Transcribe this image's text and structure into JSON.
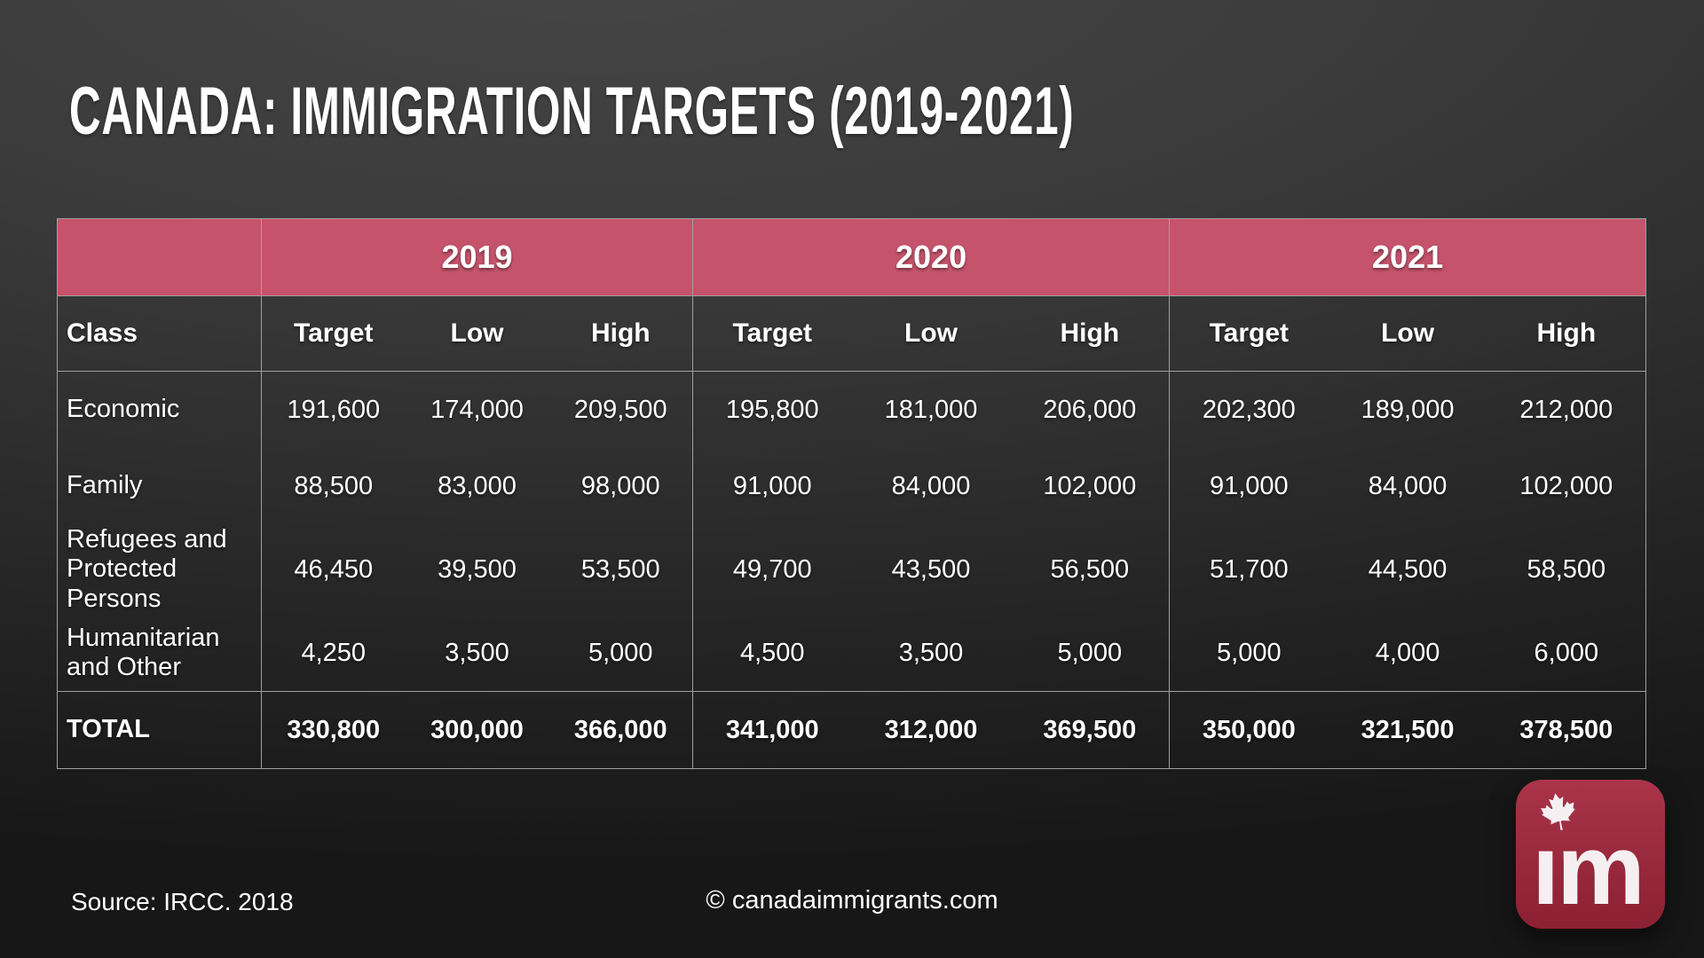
{
  "chart_data": {
    "type": "table",
    "title": "CANADA: IMMIGRATION TARGETS (2019-2021)",
    "row_header_label": "Class",
    "year_groups": [
      {
        "year": "2019",
        "sub_columns": [
          "Target",
          "Low",
          "High"
        ]
      },
      {
        "year": "2020",
        "sub_columns": [
          "Target",
          "Low",
          "High"
        ]
      },
      {
        "year": "2021",
        "sub_columns": [
          "Target",
          "Low",
          "High"
        ]
      }
    ],
    "rows": [
      {
        "label": "Economic",
        "values": [
          "191,600",
          "174,000",
          "209,500",
          "195,800",
          "181,000",
          "206,000",
          "202,300",
          "189,000",
          "212,000"
        ]
      },
      {
        "label": "Family",
        "values": [
          "88,500",
          "83,000",
          "98,000",
          "91,000",
          "84,000",
          "102,000",
          "91,000",
          "84,000",
          "102,000"
        ]
      },
      {
        "label": "Refugees and Protected Persons",
        "values": [
          "46,450",
          "39,500",
          "53,500",
          "49,700",
          "43,500",
          "56,500",
          "51,700",
          "44,500",
          "58,500"
        ]
      },
      {
        "label": "Humanitarian and Other",
        "values": [
          "4,250",
          "3,500",
          "5,000",
          "4,500",
          "3,500",
          "5,000",
          "5,000",
          "4,000",
          "6,000"
        ]
      }
    ],
    "total": {
      "label": "TOTAL",
      "values": [
        "330,800",
        "300,000",
        "366,000",
        "341,000",
        "312,000",
        "369,500",
        "350,000",
        "321,500",
        "378,500"
      ]
    }
  },
  "footer": {
    "source": "Source: IRCC. 2018",
    "copyright": "© canadaimmigrants.com"
  },
  "logo": {
    "text": "im",
    "icon": "maple-leaf-icon"
  },
  "colors": {
    "accent_pink": "#c5536b",
    "logo_red": "#9a2a3e",
    "background_dark": "#2f2f2f",
    "table_border": "#a0a0a0",
    "text": "#ffffff"
  }
}
